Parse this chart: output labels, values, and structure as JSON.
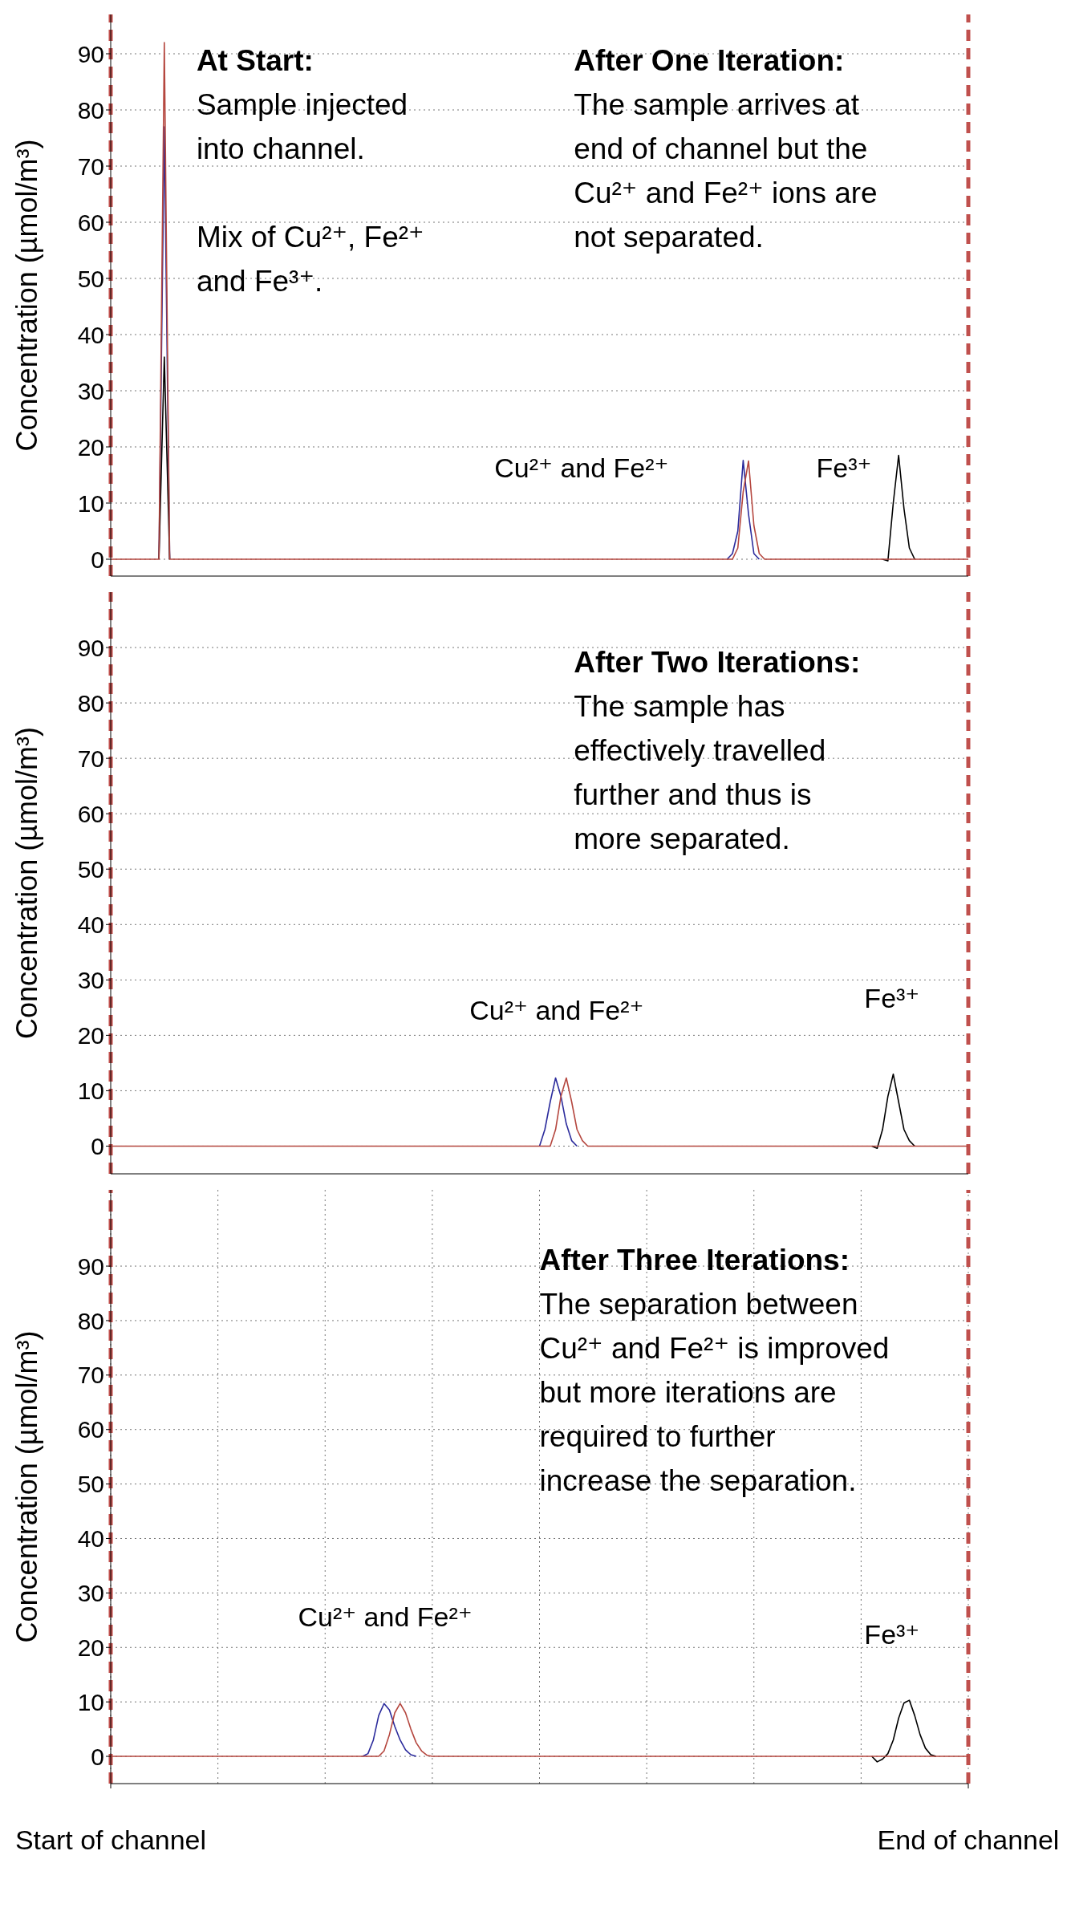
{
  "chart_data": [
    {
      "type": "line",
      "ylabel": "Concentration (µmol/m³)",
      "categories": [
        "Start of channel",
        null,
        null,
        null,
        null,
        null,
        null,
        null,
        null,
        null,
        null,
        null,
        null,
        null,
        null,
        null,
        null,
        null,
        null,
        null,
        null,
        null,
        null,
        null,
        null,
        null,
        null,
        null,
        null,
        null,
        null,
        null,
        null,
        null,
        null,
        null,
        null,
        null,
        null,
        null,
        null,
        null,
        null,
        null,
        null,
        null,
        null,
        null,
        null,
        null,
        null,
        null,
        null,
        null,
        null,
        null,
        null,
        null,
        null,
        null,
        null,
        null,
        null,
        null,
        null,
        null,
        null,
        null,
        null,
        null,
        null,
        null,
        null,
        null,
        null,
        null,
        null,
        null,
        null,
        null,
        null,
        null,
        null,
        null,
        null,
        null,
        null,
        null,
        null,
        null,
        null,
        null,
        null,
        null,
        null,
        null,
        null,
        null,
        null,
        null,
        null,
        null,
        null,
        null,
        null,
        null,
        null,
        null,
        null,
        null,
        null,
        null,
        null,
        null,
        null,
        null,
        null,
        null,
        null,
        null,
        null,
        null,
        null,
        null,
        null,
        null,
        null,
        null,
        null,
        null,
        null,
        null,
        null,
        null,
        null,
        null,
        null,
        null,
        null,
        null,
        null,
        null,
        null,
        null,
        null,
        null,
        null,
        null,
        null,
        null,
        null,
        null,
        null,
        null,
        null,
        null,
        null,
        null,
        null,
        null,
        "End of channel"
      ],
      "ylim": [
        -3,
        97
      ],
      "yticks": [
        0,
        10,
        20,
        30,
        40,
        50,
        60,
        70,
        80,
        90
      ],
      "tick_labels": "y",
      "grid": true,
      "marker": "none",
      "line_style": "solid",
      "series": [
        {
          "color": "#2b2b9c",
          "values": [
            null,
            null,
            null,
            null,
            null,
            null,
            null,
            null,
            null,
            0,
            77,
            0,
            null,
            null,
            null,
            null,
            null,
            null,
            null,
            null,
            null,
            null,
            null,
            null,
            null,
            null,
            null,
            null,
            null,
            null,
            null,
            null,
            null,
            null,
            null,
            null,
            null,
            null,
            null,
            null,
            null,
            null,
            null,
            null,
            null,
            null,
            null,
            null,
            null,
            null,
            null,
            null,
            null,
            null,
            null,
            null,
            null,
            null,
            null,
            null,
            null,
            null,
            null,
            null,
            null,
            null,
            null,
            null,
            null,
            null,
            null,
            null,
            null,
            null,
            null,
            null,
            null,
            null,
            null,
            null,
            null,
            null,
            null,
            null,
            null,
            null,
            null,
            null,
            null,
            null,
            null,
            null,
            null,
            null,
            null,
            null,
            null,
            null,
            null,
            null,
            null,
            null,
            null,
            null,
            null,
            null,
            null,
            null,
            null,
            null,
            null,
            null,
            null,
            null,
            null,
            0,
            1,
            5,
            17.6,
            8,
            1,
            0,
            null,
            null,
            null,
            null,
            null,
            null,
            null,
            null,
            null,
            null,
            null,
            null,
            null,
            null,
            null,
            null,
            null,
            null,
            null,
            null,
            null,
            null,
            null,
            null,
            null,
            null,
            null,
            null,
            null,
            null,
            null,
            null,
            null,
            null,
            null,
            null,
            null,
            null,
            null
          ]
        },
        {
          "color": "#000000",
          "values": [
            null,
            null,
            null,
            null,
            null,
            null,
            null,
            null,
            null,
            0,
            36,
            0,
            null,
            null,
            null,
            null,
            null,
            null,
            null,
            null,
            null,
            null,
            null,
            null,
            null,
            null,
            null,
            null,
            null,
            null,
            null,
            null,
            null,
            null,
            null,
            null,
            null,
            null,
            null,
            null,
            null,
            null,
            null,
            null,
            null,
            null,
            null,
            null,
            null,
            null,
            null,
            null,
            null,
            null,
            null,
            null,
            null,
            null,
            null,
            null,
            null,
            null,
            null,
            null,
            null,
            null,
            null,
            null,
            null,
            null,
            null,
            null,
            null,
            null,
            null,
            null,
            null,
            null,
            null,
            null,
            null,
            null,
            null,
            null,
            null,
            null,
            null,
            null,
            null,
            null,
            null,
            null,
            null,
            null,
            null,
            null,
            null,
            null,
            null,
            null,
            null,
            null,
            null,
            null,
            null,
            null,
            null,
            null,
            null,
            null,
            null,
            null,
            null,
            null,
            null,
            null,
            null,
            null,
            null,
            null,
            null,
            null,
            null,
            null,
            null,
            null,
            null,
            null,
            null,
            null,
            null,
            null,
            null,
            null,
            null,
            null,
            null,
            null,
            null,
            null,
            null,
            null,
            null,
            null,
            0,
            -0.3,
            10,
            18.5,
            9,
            2,
            0,
            null,
            null,
            null,
            null,
            null,
            null,
            null,
            null,
            null,
            null
          ]
        },
        {
          "color": "#b5473f",
          "values": [
            0,
            0,
            0,
            0,
            0,
            0,
            0,
            0,
            0,
            0,
            92,
            0,
            0,
            0,
            0,
            0,
            0,
            0,
            0,
            0,
            0,
            0,
            0,
            0,
            0,
            0,
            0,
            0,
            0,
            0,
            0,
            0,
            0,
            0,
            0,
            0,
            0,
            0,
            0,
            0,
            0,
            0,
            0,
            0,
            0,
            0,
            0,
            0,
            0,
            0,
            0,
            0,
            0,
            0,
            0,
            0,
            0,
            0,
            0,
            0,
            0,
            0,
            0,
            0,
            0,
            0,
            0,
            0,
            0,
            0,
            0,
            0,
            0,
            0,
            0,
            0,
            0,
            0,
            0,
            0,
            0,
            0,
            0,
            0,
            0,
            0,
            0,
            0,
            0,
            0,
            0,
            0,
            0,
            0,
            0,
            0,
            0,
            0,
            0,
            0,
            0,
            0,
            0,
            0,
            0,
            0,
            0,
            0,
            0,
            0,
            0,
            0,
            0,
            0,
            0,
            0,
            0,
            2,
            12,
            17.5,
            6,
            1,
            0,
            0,
            0,
            0,
            0,
            0,
            0,
            0,
            0,
            0,
            0,
            0,
            0,
            0,
            0,
            0,
            0,
            0,
            0,
            0,
            0,
            0,
            0,
            0,
            0,
            0,
            0,
            0,
            0,
            0,
            0,
            0,
            0,
            0,
            0,
            0,
            0,
            0,
            0
          ]
        }
      ],
      "ref_lines": [
        {
          "axis": "x",
          "value": "Start of channel",
          "color": "#c0504d",
          "line_style": "dashed"
        },
        {
          "axis": "x",
          "value": "End of channel",
          "color": "#c0504d",
          "line_style": "dashed"
        }
      ],
      "annotations": [
        "At Start:",
        "Sample injected\ninto channel.\n\nMix of Cu²⁺, Fe²⁺\nand Fe³⁺.",
        "After One Iteration:",
        "The sample arrives at\nend of channel but the\nCu²⁺ and Fe²⁺ ions are\nnot separated.",
        "Cu²⁺ and Fe²⁺",
        "Fe³⁺"
      ]
    },
    {
      "type": "line",
      "ylabel": "Concentration (µmol/m³)",
      "categories": [
        "Start of channel",
        null,
        null,
        null,
        null,
        null,
        null,
        null,
        null,
        null,
        null,
        null,
        null,
        null,
        null,
        null,
        null,
        null,
        null,
        null,
        null,
        null,
        null,
        null,
        null,
        null,
        null,
        null,
        null,
        null,
        null,
        null,
        null,
        null,
        null,
        null,
        null,
        null,
        null,
        null,
        null,
        null,
        null,
        null,
        null,
        null,
        null,
        null,
        null,
        null,
        null,
        null,
        null,
        null,
        null,
        null,
        null,
        null,
        null,
        null,
        null,
        null,
        null,
        null,
        null,
        null,
        null,
        null,
        null,
        null,
        null,
        null,
        null,
        null,
        null,
        null,
        null,
        null,
        null,
        null,
        null,
        null,
        null,
        null,
        null,
        null,
        null,
        null,
        null,
        null,
        null,
        null,
        null,
        null,
        null,
        null,
        null,
        null,
        null,
        null,
        null,
        null,
        null,
        null,
        null,
        null,
        null,
        null,
        null,
        null,
        null,
        null,
        null,
        null,
        null,
        null,
        null,
        null,
        null,
        null,
        null,
        null,
        null,
        null,
        null,
        null,
        null,
        null,
        null,
        null,
        null,
        null,
        null,
        null,
        null,
        null,
        null,
        null,
        null,
        null,
        null,
        null,
        null,
        null,
        null,
        null,
        null,
        null,
        null,
        null,
        null,
        null,
        null,
        null,
        null,
        null,
        null,
        null,
        null,
        null,
        "End of channel"
      ],
      "ylim": [
        -5,
        100
      ],
      "yticks": [
        0,
        10,
        20,
        30,
        40,
        50,
        60,
        70,
        80,
        90
      ],
      "tick_labels": "y",
      "grid": true,
      "marker": "none",
      "line_style": "solid",
      "series": [
        {
          "color": "#2b2b9c",
          "values": [
            null,
            null,
            null,
            null,
            null,
            null,
            null,
            null,
            null,
            null,
            null,
            null,
            null,
            null,
            null,
            null,
            null,
            null,
            null,
            null,
            null,
            null,
            null,
            null,
            null,
            null,
            null,
            null,
            null,
            null,
            null,
            null,
            null,
            null,
            null,
            null,
            null,
            null,
            null,
            null,
            null,
            null,
            null,
            null,
            null,
            null,
            null,
            null,
            null,
            null,
            null,
            null,
            null,
            null,
            null,
            null,
            null,
            null,
            null,
            null,
            null,
            null,
            null,
            null,
            null,
            null,
            null,
            null,
            null,
            null,
            null,
            null,
            null,
            null,
            null,
            null,
            null,
            null,
            null,
            null,
            0,
            3,
            8,
            12.3,
            9,
            4,
            1,
            0,
            null,
            null,
            null,
            null,
            null,
            null,
            null,
            null,
            null,
            null,
            null,
            null,
            null,
            null,
            null,
            null,
            null,
            null,
            null,
            null,
            null,
            null,
            null,
            null,
            null,
            null,
            null,
            null,
            null,
            null,
            null,
            null,
            null,
            null,
            null,
            null,
            null,
            null,
            null,
            null,
            null,
            null,
            null,
            null,
            null,
            null,
            null,
            null,
            null,
            null,
            null,
            null,
            null,
            null,
            null,
            null,
            null,
            null,
            null,
            null,
            null,
            null,
            null,
            null,
            null,
            null,
            null,
            null,
            null,
            null,
            null,
            null,
            null
          ]
        },
        {
          "color": "#000000",
          "values": [
            null,
            null,
            null,
            null,
            null,
            null,
            null,
            null,
            null,
            null,
            null,
            null,
            null,
            null,
            null,
            null,
            null,
            null,
            null,
            null,
            null,
            null,
            null,
            null,
            null,
            null,
            null,
            null,
            null,
            null,
            null,
            null,
            null,
            null,
            null,
            null,
            null,
            null,
            null,
            null,
            null,
            null,
            null,
            null,
            null,
            null,
            null,
            null,
            null,
            null,
            null,
            null,
            null,
            null,
            null,
            null,
            null,
            null,
            null,
            null,
            null,
            null,
            null,
            null,
            null,
            null,
            null,
            null,
            null,
            null,
            null,
            null,
            null,
            null,
            null,
            null,
            null,
            null,
            null,
            null,
            null,
            null,
            null,
            null,
            null,
            null,
            null,
            null,
            null,
            null,
            null,
            null,
            null,
            null,
            null,
            null,
            null,
            null,
            null,
            null,
            null,
            null,
            null,
            null,
            null,
            null,
            null,
            null,
            null,
            null,
            null,
            null,
            null,
            null,
            null,
            null,
            null,
            null,
            null,
            null,
            null,
            null,
            null,
            null,
            null,
            null,
            null,
            null,
            null,
            null,
            null,
            null,
            null,
            null,
            null,
            null,
            null,
            null,
            null,
            null,
            null,
            null,
            0,
            -0.4,
            3,
            9,
            13,
            8,
            3,
            1,
            0,
            null,
            null,
            null,
            null,
            null,
            null,
            null,
            null,
            null,
            null
          ]
        },
        {
          "color": "#b5473f",
          "values": [
            0,
            0,
            0,
            0,
            0,
            0,
            0,
            0,
            0,
            0,
            0,
            0,
            0,
            0,
            0,
            0,
            0,
            0,
            0,
            0,
            0,
            0,
            0,
            0,
            0,
            0,
            0,
            0,
            0,
            0,
            0,
            0,
            0,
            0,
            0,
            0,
            0,
            0,
            0,
            0,
            0,
            0,
            0,
            0,
            0,
            0,
            0,
            0,
            0,
            0,
            0,
            0,
            0,
            0,
            0,
            0,
            0,
            0,
            0,
            0,
            0,
            0,
            0,
            0,
            0,
            0,
            0,
            0,
            0,
            0,
            0,
            0,
            0,
            0,
            0,
            0,
            0,
            0,
            0,
            0,
            0,
            0,
            0,
            3,
            9,
            12.3,
            8,
            3,
            1,
            0,
            0,
            0,
            0,
            0,
            0,
            0,
            0,
            0,
            0,
            0,
            0,
            0,
            0,
            0,
            0,
            0,
            0,
            0,
            0,
            0,
            0,
            0,
            0,
            0,
            0,
            0,
            0,
            0,
            0,
            0,
            0,
            0,
            0,
            0,
            0,
            0,
            0,
            0,
            0,
            0,
            0,
            0,
            0,
            0,
            0,
            0,
            0,
            0,
            0,
            0,
            0,
            0,
            0,
            0,
            0,
            0,
            0,
            0,
            0,
            0,
            0,
            0,
            0,
            0,
            0,
            0,
            0,
            0,
            0,
            0,
            0
          ]
        }
      ],
      "ref_lines": [
        {
          "axis": "x",
          "value": "Start of channel",
          "color": "#c0504d",
          "line_style": "dashed"
        },
        {
          "axis": "x",
          "value": "End of channel",
          "color": "#c0504d",
          "line_style": "dashed"
        }
      ],
      "annotations": [
        "After Two Iterations:",
        "The sample has\neffectively travelled\nfurther and thus is\nmore separated.",
        "Cu²⁺ and Fe²⁺",
        "Fe³⁺"
      ]
    },
    {
      "type": "line",
      "ylabel": "Concentration (µmol/m³)",
      "categories": [
        "Start of channel",
        null,
        null,
        null,
        null,
        null,
        null,
        null,
        null,
        null,
        null,
        null,
        null,
        null,
        null,
        null,
        null,
        null,
        null,
        null,
        null,
        null,
        null,
        null,
        null,
        null,
        null,
        null,
        null,
        null,
        null,
        null,
        null,
        null,
        null,
        null,
        null,
        null,
        null,
        null,
        null,
        null,
        null,
        null,
        null,
        null,
        null,
        null,
        null,
        null,
        null,
        null,
        null,
        null,
        null,
        null,
        null,
        null,
        null,
        null,
        null,
        null,
        null,
        null,
        null,
        null,
        null,
        null,
        null,
        null,
        null,
        null,
        null,
        null,
        null,
        null,
        null,
        null,
        null,
        null,
        null,
        null,
        null,
        null,
        null,
        null,
        null,
        null,
        null,
        null,
        null,
        null,
        null,
        null,
        null,
        null,
        null,
        null,
        null,
        null,
        null,
        null,
        null,
        null,
        null,
        null,
        null,
        null,
        null,
        null,
        null,
        null,
        null,
        null,
        null,
        null,
        null,
        null,
        null,
        null,
        null,
        null,
        null,
        null,
        null,
        null,
        null,
        null,
        null,
        null,
        null,
        null,
        null,
        null,
        null,
        null,
        null,
        null,
        null,
        null,
        null,
        null,
        null,
        null,
        null,
        null,
        null,
        null,
        null,
        null,
        null,
        null,
        null,
        null,
        null,
        null,
        null,
        null,
        null,
        null,
        "End of channel"
      ],
      "ylim": [
        -5,
        104
      ],
      "yticks": [
        0,
        10,
        20,
        30,
        40,
        50,
        60,
        70,
        80,
        90
      ],
      "grid": true,
      "marker": "none",
      "line_style": "solid",
      "series": [
        {
          "color": "#2b2b9c",
          "values": [
            null,
            null,
            null,
            null,
            null,
            null,
            null,
            null,
            null,
            null,
            null,
            null,
            null,
            null,
            null,
            null,
            null,
            null,
            null,
            null,
            null,
            null,
            null,
            null,
            null,
            null,
            null,
            null,
            null,
            null,
            null,
            null,
            null,
            null,
            null,
            null,
            null,
            null,
            null,
            null,
            null,
            null,
            null,
            null,
            null,
            null,
            null,
            0,
            0.5,
            3,
            7.5,
            9.7,
            8.5,
            5.5,
            3,
            1.2,
            0.3,
            0,
            null,
            null,
            null,
            null,
            null,
            null,
            null,
            null,
            null,
            null,
            null,
            null,
            null,
            null,
            null,
            null,
            null,
            null,
            null,
            null,
            null,
            null,
            null,
            null,
            null,
            null,
            null,
            null,
            null,
            null,
            null,
            null,
            null,
            null,
            null,
            null,
            null,
            null,
            null,
            null,
            null,
            null,
            null,
            null,
            null,
            null,
            null,
            null,
            null,
            null,
            null,
            null,
            null,
            null,
            null,
            null,
            null,
            null,
            null,
            null,
            null,
            null,
            null,
            null,
            null,
            null,
            null,
            null,
            null,
            null,
            null,
            null,
            null,
            null,
            null,
            null,
            null,
            null,
            null,
            null,
            null,
            null,
            null,
            null,
            null,
            null,
            null,
            null,
            null,
            null,
            null,
            null,
            null,
            null,
            null,
            null,
            null,
            null,
            null,
            null,
            null,
            null,
            null
          ]
        },
        {
          "color": "#000000",
          "values": [
            null,
            null,
            null,
            null,
            null,
            null,
            null,
            null,
            null,
            null,
            null,
            null,
            null,
            null,
            null,
            null,
            null,
            null,
            null,
            null,
            null,
            null,
            null,
            null,
            null,
            null,
            null,
            null,
            null,
            null,
            null,
            null,
            null,
            null,
            null,
            null,
            null,
            null,
            null,
            null,
            null,
            null,
            null,
            null,
            null,
            null,
            null,
            null,
            null,
            null,
            null,
            null,
            null,
            null,
            null,
            null,
            null,
            null,
            null,
            null,
            null,
            null,
            null,
            null,
            null,
            null,
            null,
            null,
            null,
            null,
            null,
            null,
            null,
            null,
            null,
            null,
            null,
            null,
            null,
            null,
            null,
            null,
            null,
            null,
            null,
            null,
            null,
            null,
            null,
            null,
            null,
            null,
            null,
            null,
            null,
            null,
            null,
            null,
            null,
            null,
            null,
            null,
            null,
            null,
            null,
            null,
            null,
            null,
            null,
            null,
            null,
            null,
            null,
            null,
            null,
            null,
            null,
            null,
            null,
            null,
            null,
            null,
            null,
            null,
            null,
            null,
            null,
            null,
            null,
            null,
            null,
            null,
            null,
            null,
            null,
            null,
            null,
            null,
            null,
            null,
            null,
            null,
            0,
            -1,
            -0.5,
            0.5,
            3,
            7,
            9.8,
            10.3,
            7.5,
            4,
            1.5,
            0.3,
            0,
            null,
            null,
            null,
            null,
            null,
            null
          ]
        },
        {
          "color": "#b5473f",
          "values": [
            0,
            0,
            0,
            0,
            0,
            0,
            0,
            0,
            0,
            0,
            0,
            0,
            0,
            0,
            0,
            0,
            0,
            0,
            0,
            0,
            0,
            0,
            0,
            0,
            0,
            0,
            0,
            0,
            0,
            0,
            0,
            0,
            0,
            0,
            0,
            0,
            0,
            0,
            0,
            0,
            0,
            0,
            0,
            0,
            0,
            0,
            0,
            0,
            0,
            0,
            0,
            1,
            4,
            8,
            9.7,
            8,
            5,
            2.5,
            1,
            0.2,
            0,
            0,
            0,
            0,
            0,
            0,
            0,
            0,
            0,
            0,
            0,
            0,
            0,
            0,
            0,
            0,
            0,
            0,
            0,
            0,
            0,
            0,
            0,
            0,
            0,
            0,
            0,
            0,
            0,
            0,
            0,
            0,
            0,
            0,
            0,
            0,
            0,
            0,
            0,
            0,
            0,
            0,
            0,
            0,
            0,
            0,
            0,
            0,
            0,
            0,
            0,
            0,
            0,
            0,
            0,
            0,
            0,
            0,
            0,
            0,
            0,
            0,
            0,
            0,
            0,
            0,
            0,
            0,
            0,
            0,
            0,
            0,
            0,
            0,
            0,
            0,
            0,
            0,
            0,
            0,
            0,
            0,
            0,
            0,
            0,
            0,
            0,
            0,
            0,
            0,
            0,
            0,
            0,
            0,
            0,
            0,
            0,
            0,
            0,
            0,
            0
          ]
        }
      ],
      "ref_lines": [
        {
          "axis": "x",
          "value": "Start of channel",
          "color": "#c0504d",
          "line_style": "dashed"
        },
        {
          "axis": "x",
          "value": "End of channel",
          "color": "#c0504d",
          "line_style": "dashed"
        }
      ],
      "annotations": [
        "After Three Iterations:",
        "The separation between\nCu²⁺ and Fe²⁺ is improved\nbut more iterations are\nrequired to further\nincrease the separation.",
        "Cu²⁺ and Fe²⁺",
        "Fe³⁺"
      ]
    }
  ]
}
